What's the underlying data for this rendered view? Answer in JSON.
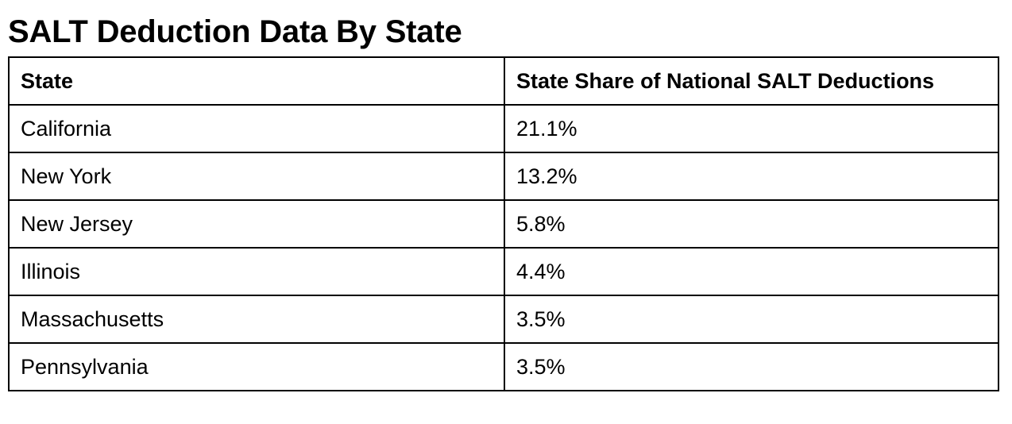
{
  "title": "SALT Deduction Data By State",
  "table": {
    "header": [
      "State",
      "State Share of National SALT Deductions"
    ],
    "rows": [
      [
        "California",
        "21.1%"
      ],
      [
        "New York",
        "13.2%"
      ],
      [
        "New Jersey",
        "5.8%"
      ],
      [
        "Illinois",
        "4.4%"
      ],
      [
        "Massachusetts",
        "3.5%"
      ],
      [
        "Pennsylvania",
        "3.5%"
      ]
    ]
  }
}
